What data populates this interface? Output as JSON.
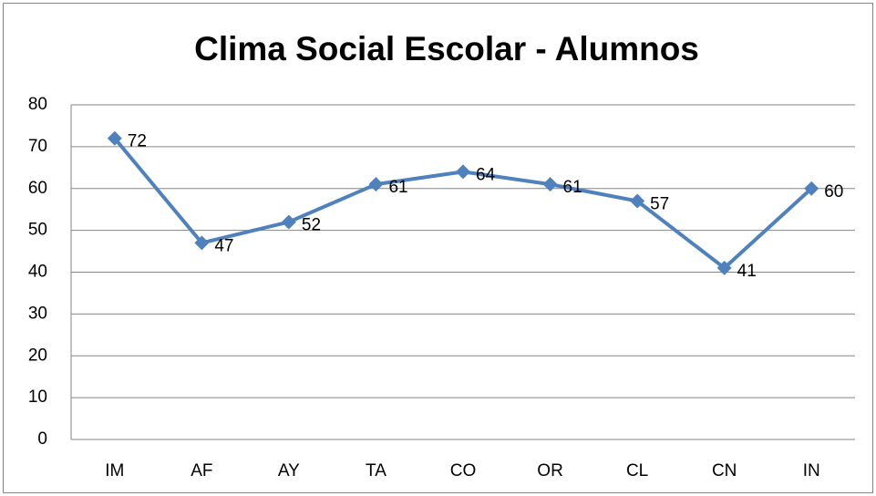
{
  "chart_data": {
    "type": "line",
    "title": "Clima Social Escolar - Alumnos",
    "categories": [
      "IM",
      "AF",
      "AY",
      "TA",
      "CO",
      "OR",
      "CL",
      "CN",
      "IN"
    ],
    "values": [
      72,
      47,
      52,
      61,
      64,
      61,
      57,
      41,
      60
    ],
    "color": "#4f81bd",
    "ylim": [
      0,
      80
    ],
    "yticks": [
      0,
      10,
      20,
      30,
      40,
      50,
      60,
      70,
      80
    ],
    "grid": true
  }
}
